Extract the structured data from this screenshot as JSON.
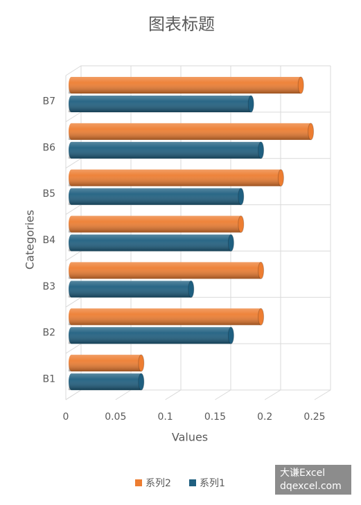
{
  "chart_data": {
    "type": "bar3d-horizontal",
    "title": "图表标题",
    "x_label": "Values",
    "y_label": "Categories",
    "categories": [
      "B1",
      "B2",
      "B3",
      "B4",
      "B5",
      "B6",
      "B7"
    ],
    "series": [
      {
        "name": "系列1",
        "color": "#1f5f80",
        "values": [
          0.07,
          0.16,
          0.12,
          0.16,
          0.17,
          0.19,
          0.18
        ]
      },
      {
        "name": "系列2",
        "color": "#ed7d31",
        "values": [
          0.07,
          0.19,
          0.19,
          0.17,
          0.21,
          0.24,
          0.23
        ]
      }
    ],
    "xlim": [
      0,
      0.25
    ],
    "xticks": [
      0,
      0.05,
      0.1,
      0.15,
      0.2,
      0.25
    ],
    "grid": true,
    "legend": "bottom",
    "watermark": [
      "大谦Excel",
      "dqexcel.com"
    ]
  }
}
